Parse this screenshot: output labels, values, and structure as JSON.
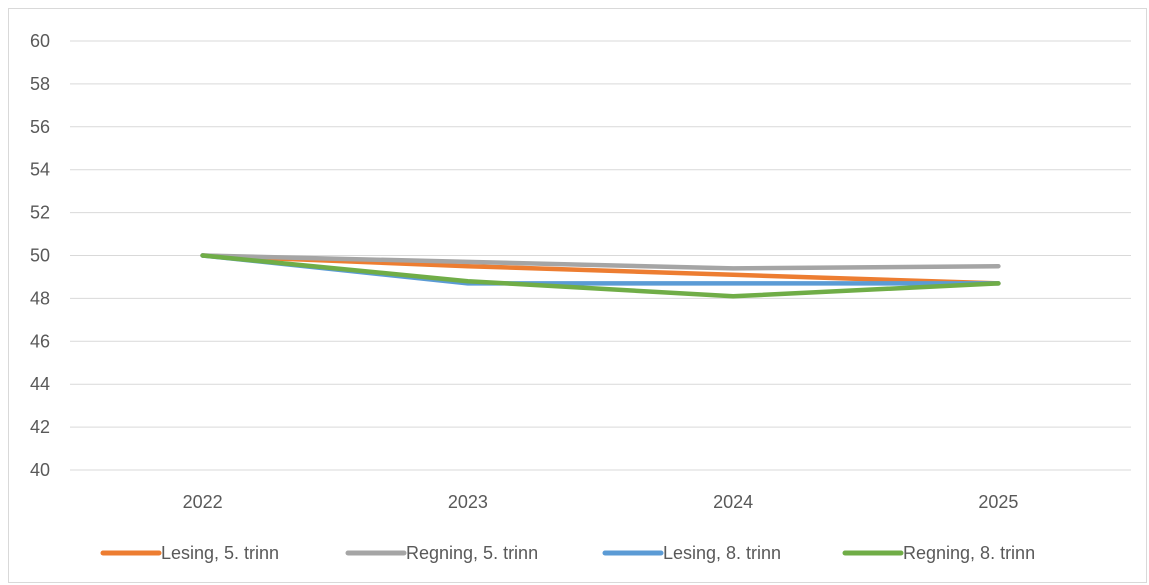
{
  "chart_data": {
    "type": "line",
    "title": "",
    "xlabel": "",
    "ylabel": "",
    "categories": [
      "2022",
      "2023",
      "2024",
      "2025"
    ],
    "ylim": [
      40,
      60
    ],
    "yticks": [
      40,
      42,
      44,
      46,
      48,
      50,
      52,
      54,
      56,
      58,
      60
    ],
    "grid": true,
    "legend_position": "bottom",
    "series": [
      {
        "name": "Lesing, 5. trinn",
        "color": "#ED7D31",
        "values": [
          50.0,
          49.5,
          49.1,
          48.7
        ]
      },
      {
        "name": "Regning, 5. trinn",
        "color": "#A5A5A5",
        "values": [
          50.0,
          49.7,
          49.4,
          49.5
        ]
      },
      {
        "name": "Lesing, 8. trinn",
        "color": "#5B9BD5",
        "values": [
          50.0,
          48.7,
          48.7,
          48.7
        ]
      },
      {
        "name": "Regning, 8. trinn",
        "color": "#70AD47",
        "values": [
          50.0,
          48.8,
          48.1,
          48.7
        ]
      }
    ]
  }
}
